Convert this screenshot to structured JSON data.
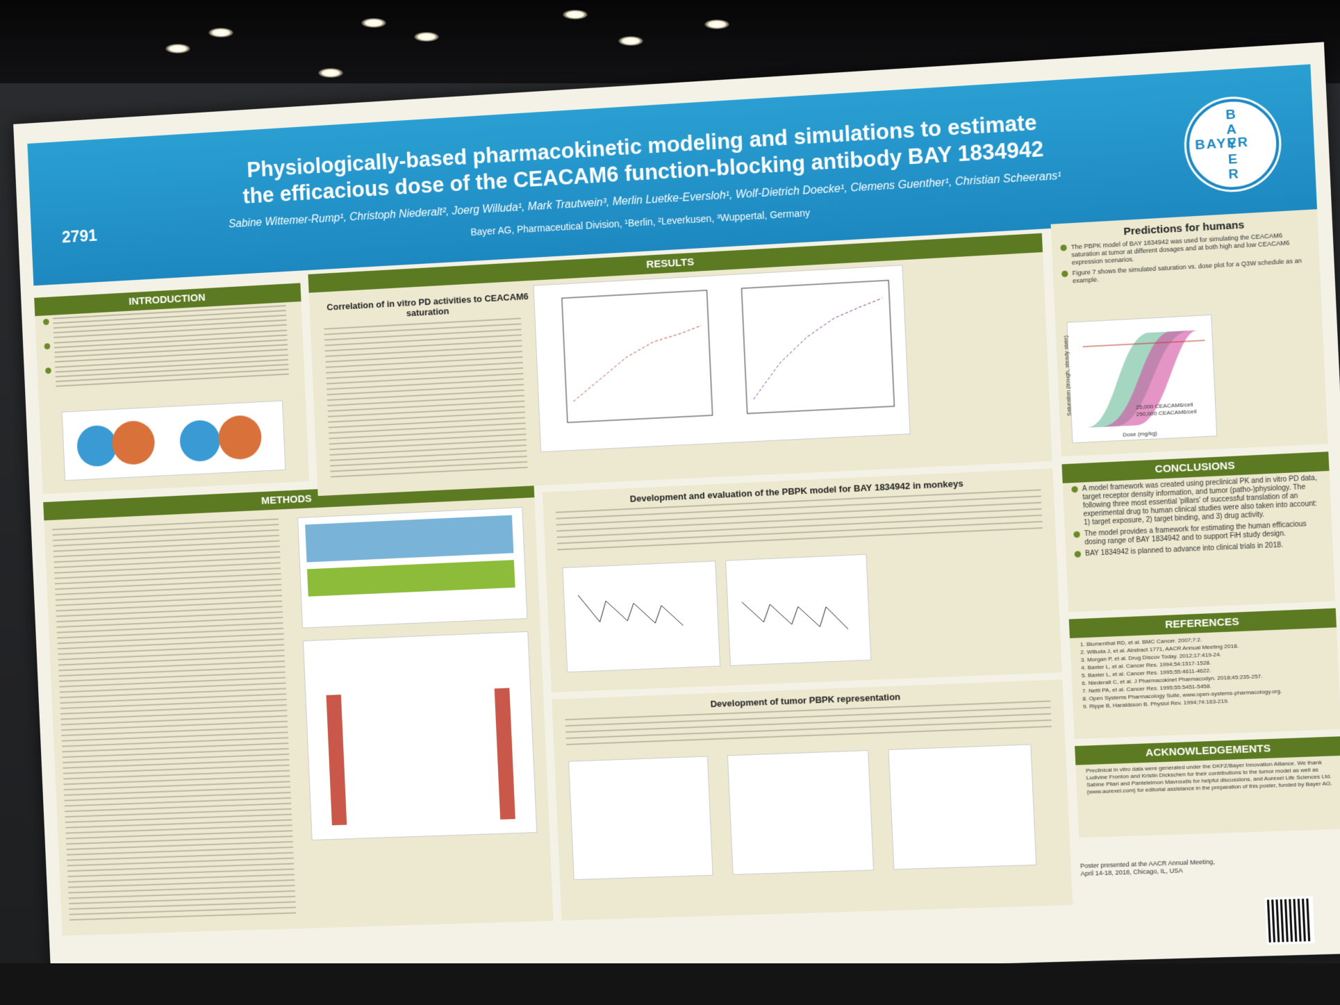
{
  "poster": {
    "number": "2791",
    "title_line1": "Physiologically-based pharmacokinetic modeling and simulations to estimate",
    "title_line2": "the efficacious dose of the CEACAM6 function-blocking antibody BAY 1834942",
    "authors": "Sabine Wittemer-Rump¹, Christoph Niederalt², Joerg Willuda¹, Mark Trautwein³, Merlin Luetke-Eversloh¹, Wolf-Dietrich Doecke¹, Clemens Guenther¹, Christian Scheerans¹",
    "affiliation": "Bayer AG, Pharmaceutical Division, ¹Berlin, ²Leverkusen, ³Wuppertal, Germany",
    "logo_text_horizontal": "BAYER",
    "logo_text_vertical": "BAYER"
  },
  "sections": {
    "introduction": "INTRODUCTION",
    "methods": "METHODS",
    "results": "RESULTS",
    "predictions": "Predictions for humans",
    "conclusions": "CONCLUSIONS",
    "references": "REFERENCES",
    "acknowledgements": "ACKNOWLEDGEMENTS"
  },
  "results": {
    "correlation_heading": "Correlation of in vitro PD activities to CEACAM6 saturation",
    "pbpk_heading": "Development and evaluation of the PBPK model for BAY 1834942 in monkeys",
    "tumor_heading": "Development of tumor PBPK representation"
  },
  "predictions": {
    "p1": "The PBPK model of BAY 1834942 was used for simulating the CEACAM6 saturation at tumor at different dosages and at both high and low CEACAM6 expression scenarios.",
    "p2": "Figure 7 shows the simulated saturation vs. dose plot for a Q3W schedule as an example."
  },
  "conclusions": {
    "c1": "A model framework was created using preclinical PK and in vitro PD data, target receptor density information, and tumor (patho-)physiology. The following three most essential 'pillars' of successful translation of an experimental drug to human clinical studies were also taken into account: 1) target exposure, 2) target binding, and 3) drug activity.",
    "c2": "The model provides a framework for estimating the human efficacious dosing range of BAY 1834942 and to support FiH study design.",
    "c3": "BAY 1834942 is planned to advance into clinical trials in 2018."
  },
  "references": [
    "1. Blumenthal RD, et al. BMC Cancer. 2007;7:2.",
    "2. Willuda J, et al. Abstract 1771, AACR Annual Meeting 2018.",
    "3. Morgan P, et al. Drug Discov Today. 2012;17:419-24.",
    "4. Baxter L, et al. Cancer Res. 1994;54:1517-1528.",
    "5. Baxter L, et al. Cancer Res. 1995;55:4611-4622.",
    "6. Niederalt C, et al. J Pharmacokinet Pharmacodyn. 2018;45:235-257.",
    "7. Netti PA, et al. Cancer Res. 1995;55:5451-5458.",
    "8. Open Systems Pharmacology Suite, www.open-systems-pharmacology.org.",
    "9. Rippe B, Haraldsson B. Physiol Rev. 1994;74:163-219."
  ],
  "acknowledgements": "Preclinical in vitro data were generated under the DKFZ/Bayer Innovation Alliance. We thank Ludivine Fronton and Kristin Dickschen for their contributions to the tumor model as well as Sabine Pilari and Panteleimon Mavroudis for helpful discussions, and Aurexel Life Sciences Ltd. (www.aurexel.com) for editorial assistance in the preparation of this poster, funded by Bayer AG.",
  "footer": {
    "presented": "Poster presented at the AACR Annual Meeting,",
    "dates": "April 14-18, 2018, Chicago, IL, USA"
  },
  "figure7": {
    "xlabel": "Dose (mg/kg)",
    "ylabel": "Saturation (trough, steady state)",
    "legend": [
      "25,000 CEACAM6/cell",
      "250,000 CEACAM6/cell"
    ]
  }
}
